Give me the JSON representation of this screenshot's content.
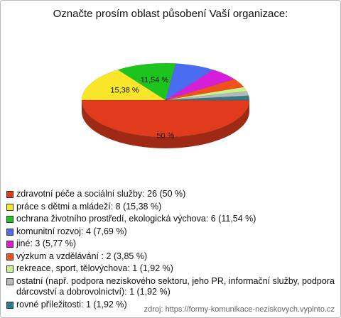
{
  "chart_data": {
    "type": "pie3d",
    "title": "Označte prosím oblast působení Vaší organizace:",
    "categories": [
      "zdravotní péče a sociální služby: 26 (50 %)",
      "práce s dětmi a mládeží: 8 (15,38 %)",
      "ochrana životního prostředí, ekologická výchova: 6 (11,54 %)",
      "komunitní rozvoj: 4 (7,69 %)",
      "jiné: 3 (5,77 %)",
      "výzkum a vzdělávání : 2 (3,85 %)",
      "rekreace, sport, tělovýchova: 1 (1,92 %)",
      "ostatní (např. podpora neziskového sektoru, jeho PR, informační služby, podpora dárcovství a dobrovolnictví): 1 (1,92 %)",
      "rovné příležitosti: 1 (1,92 %)"
    ],
    "values": [
      50,
      15.38,
      11.54,
      7.69,
      5.77,
      3.85,
      1.92,
      1.92,
      1.92
    ],
    "value_labels": [
      "50 %",
      "15,38 %",
      "11,54 %",
      null,
      null,
      null,
      null,
      null,
      null
    ],
    "colors": [
      "#e23a1c",
      "#f7e62a",
      "#1ec41e",
      "#4a6cf0",
      "#d61ed6",
      "#f0501a",
      "#c8f28a",
      "#b8b8b8",
      "#2a7e8e"
    ],
    "source": "zdroj: https://formy-komunikace-neziskovych.vyplnto.cz"
  }
}
